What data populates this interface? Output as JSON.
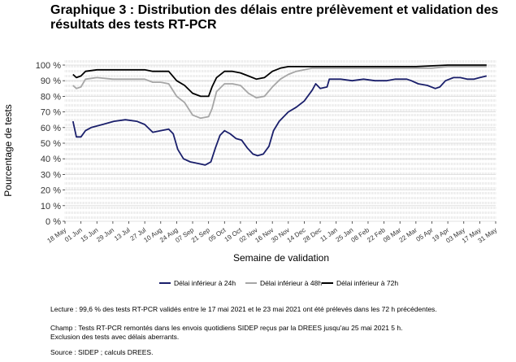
{
  "figure": {
    "title": "Graphique 3 : Distribution des délais entre prélèvement et validation des résultats des tests RT-PCR",
    "notes": {
      "lecture": "Lecture : 99,6 % des tests RT-PCR validés entre le 17 mai 2021 et le 23 mai 2021 ont été prélevés dans les 72 h précédentes.",
      "champ": "Champ : Tests RT-PCR remontés dans les envois quotidiens SIDEP reçus par la DREES jusqu'au 25 mai 2021 5 h.\nExclusion des tests avec délais aberrants.",
      "source": "Source : SIDEP ; calculs DREES."
    }
  },
  "chart_data": {
    "type": "line",
    "title": "Graphique 3 : Distribution des délais entre prélèvement et validation des résultats des tests RT-PCR",
    "xlabel": "Semaine de validation",
    "ylabel": "Pourcentage de tests",
    "x_ticks": [
      "18 May",
      "01 Jun",
      "15 Jun",
      "29 Jun",
      "13 Jul",
      "27 Jul",
      "10 Aug",
      "24 Aug",
      "07 Sep",
      "21 Sep",
      "05 Oct",
      "19 Oct",
      "02 Nov",
      "16 Nov",
      "30 Nov",
      "14 Dec",
      "28 Dec",
      "11 Jan",
      "25 Jan",
      "08 Feb",
      "22 Feb",
      "08 Mar",
      "22 Mar",
      "05 Apr",
      "19 Apr",
      "03 May",
      "17 May",
      "31 May"
    ],
    "y_ticks": [
      "0 %",
      "10 %",
      "20 %",
      "30 %",
      "40 %",
      "50 %",
      "60 %",
      "70 %",
      "80 %",
      "90 %",
      "100 %"
    ],
    "ylim": [
      0,
      100
    ],
    "x_range": [
      "2020-05-18",
      "2021-05-31"
    ],
    "grid": true,
    "legend_position": "bottom",
    "series": [
      {
        "name": "Délai inférieur à 24h",
        "color": "#1a1f6b",
        "points": [
          [
            "2020-05-25",
            64
          ],
          [
            "2020-05-28",
            54
          ],
          [
            "2020-06-01",
            54
          ],
          [
            "2020-06-05",
            58
          ],
          [
            "2020-06-10",
            60
          ],
          [
            "2020-06-20",
            62
          ],
          [
            "2020-06-30",
            64
          ],
          [
            "2020-07-10",
            65
          ],
          [
            "2020-07-20",
            64
          ],
          [
            "2020-07-27",
            62
          ],
          [
            "2020-08-03",
            57
          ],
          [
            "2020-08-10",
            58
          ],
          [
            "2020-08-17",
            59
          ],
          [
            "2020-08-21",
            56
          ],
          [
            "2020-08-25",
            46
          ],
          [
            "2020-08-30",
            40
          ],
          [
            "2020-09-05",
            38
          ],
          [
            "2020-09-12",
            37
          ],
          [
            "2020-09-18",
            36
          ],
          [
            "2020-09-23",
            38
          ],
          [
            "2020-09-27",
            47
          ],
          [
            "2020-10-01",
            55
          ],
          [
            "2020-10-05",
            58
          ],
          [
            "2020-10-10",
            56
          ],
          [
            "2020-10-15",
            53
          ],
          [
            "2020-10-20",
            52
          ],
          [
            "2020-10-25",
            47
          ],
          [
            "2020-10-30",
            43
          ],
          [
            "2020-11-03",
            42
          ],
          [
            "2020-11-08",
            43
          ],
          [
            "2020-11-13",
            48
          ],
          [
            "2020-11-17",
            58
          ],
          [
            "2020-11-22",
            64
          ],
          [
            "2020-11-30",
            70
          ],
          [
            "2020-12-07",
            73
          ],
          [
            "2020-12-14",
            77
          ],
          [
            "2020-12-21",
            84
          ],
          [
            "2020-12-24",
            88
          ],
          [
            "2020-12-28",
            85
          ],
          [
            "2021-01-03",
            86
          ],
          [
            "2021-01-05",
            91
          ],
          [
            "2021-01-15",
            91
          ],
          [
            "2021-01-25",
            90
          ],
          [
            "2021-02-04",
            91
          ],
          [
            "2021-02-14",
            90
          ],
          [
            "2021-02-24",
            90
          ],
          [
            "2021-03-04",
            91
          ],
          [
            "2021-03-14",
            91
          ],
          [
            "2021-03-18",
            90
          ],
          [
            "2021-03-24",
            88
          ],
          [
            "2021-04-01",
            87
          ],
          [
            "2021-04-08",
            85
          ],
          [
            "2021-04-12",
            86
          ],
          [
            "2021-04-17",
            90
          ],
          [
            "2021-04-24",
            92
          ],
          [
            "2021-04-30",
            92
          ],
          [
            "2021-05-06",
            91
          ],
          [
            "2021-05-12",
            91
          ],
          [
            "2021-05-17",
            92
          ],
          [
            "2021-05-23",
            93
          ]
        ]
      },
      {
        "name": "Délai inférieur à 48h",
        "color": "#a6a6a6",
        "points": [
          [
            "2020-05-25",
            87
          ],
          [
            "2020-05-28",
            85
          ],
          [
            "2020-06-01",
            86
          ],
          [
            "2020-06-05",
            91
          ],
          [
            "2020-06-15",
            92
          ],
          [
            "2020-06-29",
            91
          ],
          [
            "2020-07-13",
            91
          ],
          [
            "2020-07-27",
            91
          ],
          [
            "2020-08-03",
            89
          ],
          [
            "2020-08-10",
            89
          ],
          [
            "2020-08-17",
            88
          ],
          [
            "2020-08-24",
            80
          ],
          [
            "2020-08-31",
            76
          ],
          [
            "2020-09-07",
            68
          ],
          [
            "2020-09-14",
            66
          ],
          [
            "2020-09-21",
            67
          ],
          [
            "2020-09-24",
            72
          ],
          [
            "2020-09-28",
            83
          ],
          [
            "2020-10-05",
            88
          ],
          [
            "2020-10-12",
            88
          ],
          [
            "2020-10-19",
            87
          ],
          [
            "2020-10-26",
            82
          ],
          [
            "2020-11-02",
            79
          ],
          [
            "2020-11-09",
            80
          ],
          [
            "2020-11-16",
            86
          ],
          [
            "2020-11-23",
            91
          ],
          [
            "2020-11-30",
            94
          ],
          [
            "2020-12-07",
            96
          ],
          [
            "2020-12-14",
            97
          ],
          [
            "2020-12-21",
            98
          ],
          [
            "2020-12-28",
            98
          ],
          [
            "2021-01-11",
            98
          ],
          [
            "2021-01-25",
            98
          ],
          [
            "2021-02-08",
            98
          ],
          [
            "2021-02-22",
            98
          ],
          [
            "2021-03-08",
            98
          ],
          [
            "2021-03-22",
            98
          ],
          [
            "2021-04-05",
            98
          ],
          [
            "2021-04-19",
            99
          ],
          [
            "2021-05-03",
            99
          ],
          [
            "2021-05-23",
            99
          ]
        ]
      },
      {
        "name": "Délai inférieur à 72h",
        "color": "#000000",
        "points": [
          [
            "2020-05-25",
            94
          ],
          [
            "2020-05-28",
            92
          ],
          [
            "2020-06-01",
            93
          ],
          [
            "2020-06-05",
            96
          ],
          [
            "2020-06-15",
            97
          ],
          [
            "2020-06-29",
            97
          ],
          [
            "2020-07-13",
            97
          ],
          [
            "2020-07-27",
            97
          ],
          [
            "2020-08-03",
            96
          ],
          [
            "2020-08-10",
            96
          ],
          [
            "2020-08-17",
            96
          ],
          [
            "2020-08-24",
            90
          ],
          [
            "2020-08-31",
            87
          ],
          [
            "2020-09-07",
            82
          ],
          [
            "2020-09-14",
            80
          ],
          [
            "2020-09-21",
            80
          ],
          [
            "2020-09-24",
            86
          ],
          [
            "2020-09-28",
            92
          ],
          [
            "2020-10-05",
            96
          ],
          [
            "2020-10-12",
            96
          ],
          [
            "2020-10-19",
            95
          ],
          [
            "2020-10-26",
            93
          ],
          [
            "2020-11-02",
            91
          ],
          [
            "2020-11-09",
            92
          ],
          [
            "2020-11-16",
            96
          ],
          [
            "2020-11-23",
            98
          ],
          [
            "2020-11-30",
            99
          ],
          [
            "2020-12-14",
            99
          ],
          [
            "2020-12-28",
            99
          ],
          [
            "2021-01-25",
            99
          ],
          [
            "2021-02-22",
            99
          ],
          [
            "2021-03-22",
            99
          ],
          [
            "2021-04-19",
            100
          ],
          [
            "2021-05-23",
            100
          ]
        ]
      }
    ]
  }
}
